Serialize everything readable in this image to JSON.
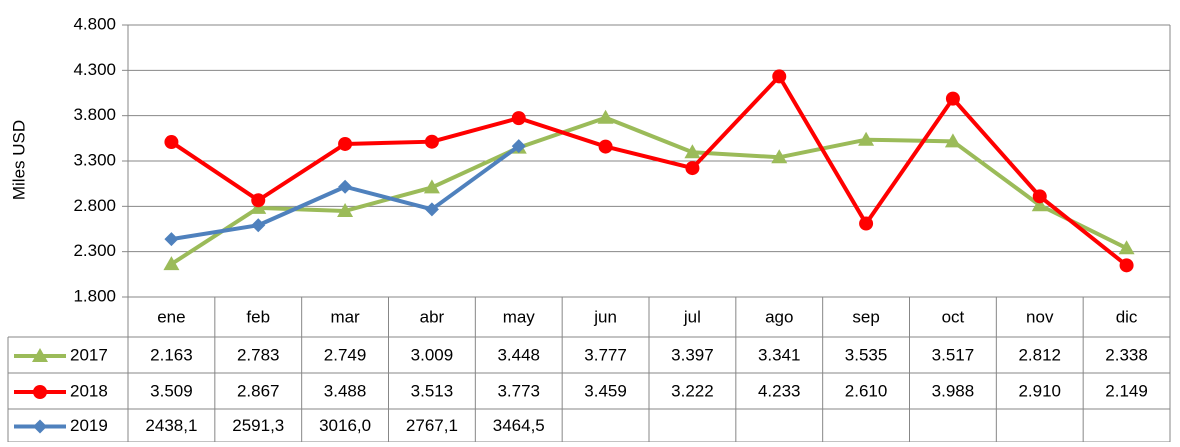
{
  "chart_data": {
    "type": "line",
    "y_axis_label": "Miles USD",
    "categories": [
      "ene",
      "feb",
      "mar",
      "abr",
      "may",
      "jun",
      "jul",
      "ago",
      "sep",
      "oct",
      "nov",
      "dic"
    ],
    "series": [
      {
        "name": "2017",
        "color": "#9bbb59",
        "marker": "triangle",
        "values": [
          2163,
          2783,
          2749,
          3009,
          3448,
          3777,
          3397,
          3341,
          3535,
          3517,
          2812,
          2338
        ],
        "value_labels": [
          "2.163",
          "2.783",
          "2.749",
          "3.009",
          "3.448",
          "3.777",
          "3.397",
          "3.341",
          "3.535",
          "3.517",
          "2.812",
          "2.338"
        ]
      },
      {
        "name": "2018",
        "color": "#ff0000",
        "marker": "circle",
        "values": [
          3509,
          2867,
          3488,
          3513,
          3773,
          3459,
          3222,
          4233,
          2610,
          3988,
          2910,
          2149
        ],
        "value_labels": [
          "3.509",
          "2.867",
          "3.488",
          "3.513",
          "3.773",
          "3.459",
          "3.222",
          "4.233",
          "2.610",
          "3.988",
          "2.910",
          "2.149"
        ]
      },
      {
        "name": "2019",
        "color": "#4f81bd",
        "marker": "diamond",
        "values": [
          2438.1,
          2591.3,
          3016.0,
          2767.1,
          3464.5,
          null,
          null,
          null,
          null,
          null,
          null,
          null
        ],
        "value_labels": [
          "2438,1",
          "2591,3",
          "3016,0",
          "2767,1",
          "3464,5",
          null,
          null,
          null,
          null,
          null,
          null,
          null
        ]
      }
    ],
    "ylim": [
      1800,
      4800
    ],
    "yticks": [
      {
        "value": 1800,
        "label": "1.800"
      },
      {
        "value": 2300,
        "label": "2.300"
      },
      {
        "value": 2800,
        "label": "2.800"
      },
      {
        "value": 3300,
        "label": "3.300"
      },
      {
        "value": 3800,
        "label": "3.800"
      },
      {
        "value": 4300,
        "label": "4.300"
      },
      {
        "value": 4800,
        "label": "4.800"
      }
    ],
    "grid": true
  }
}
